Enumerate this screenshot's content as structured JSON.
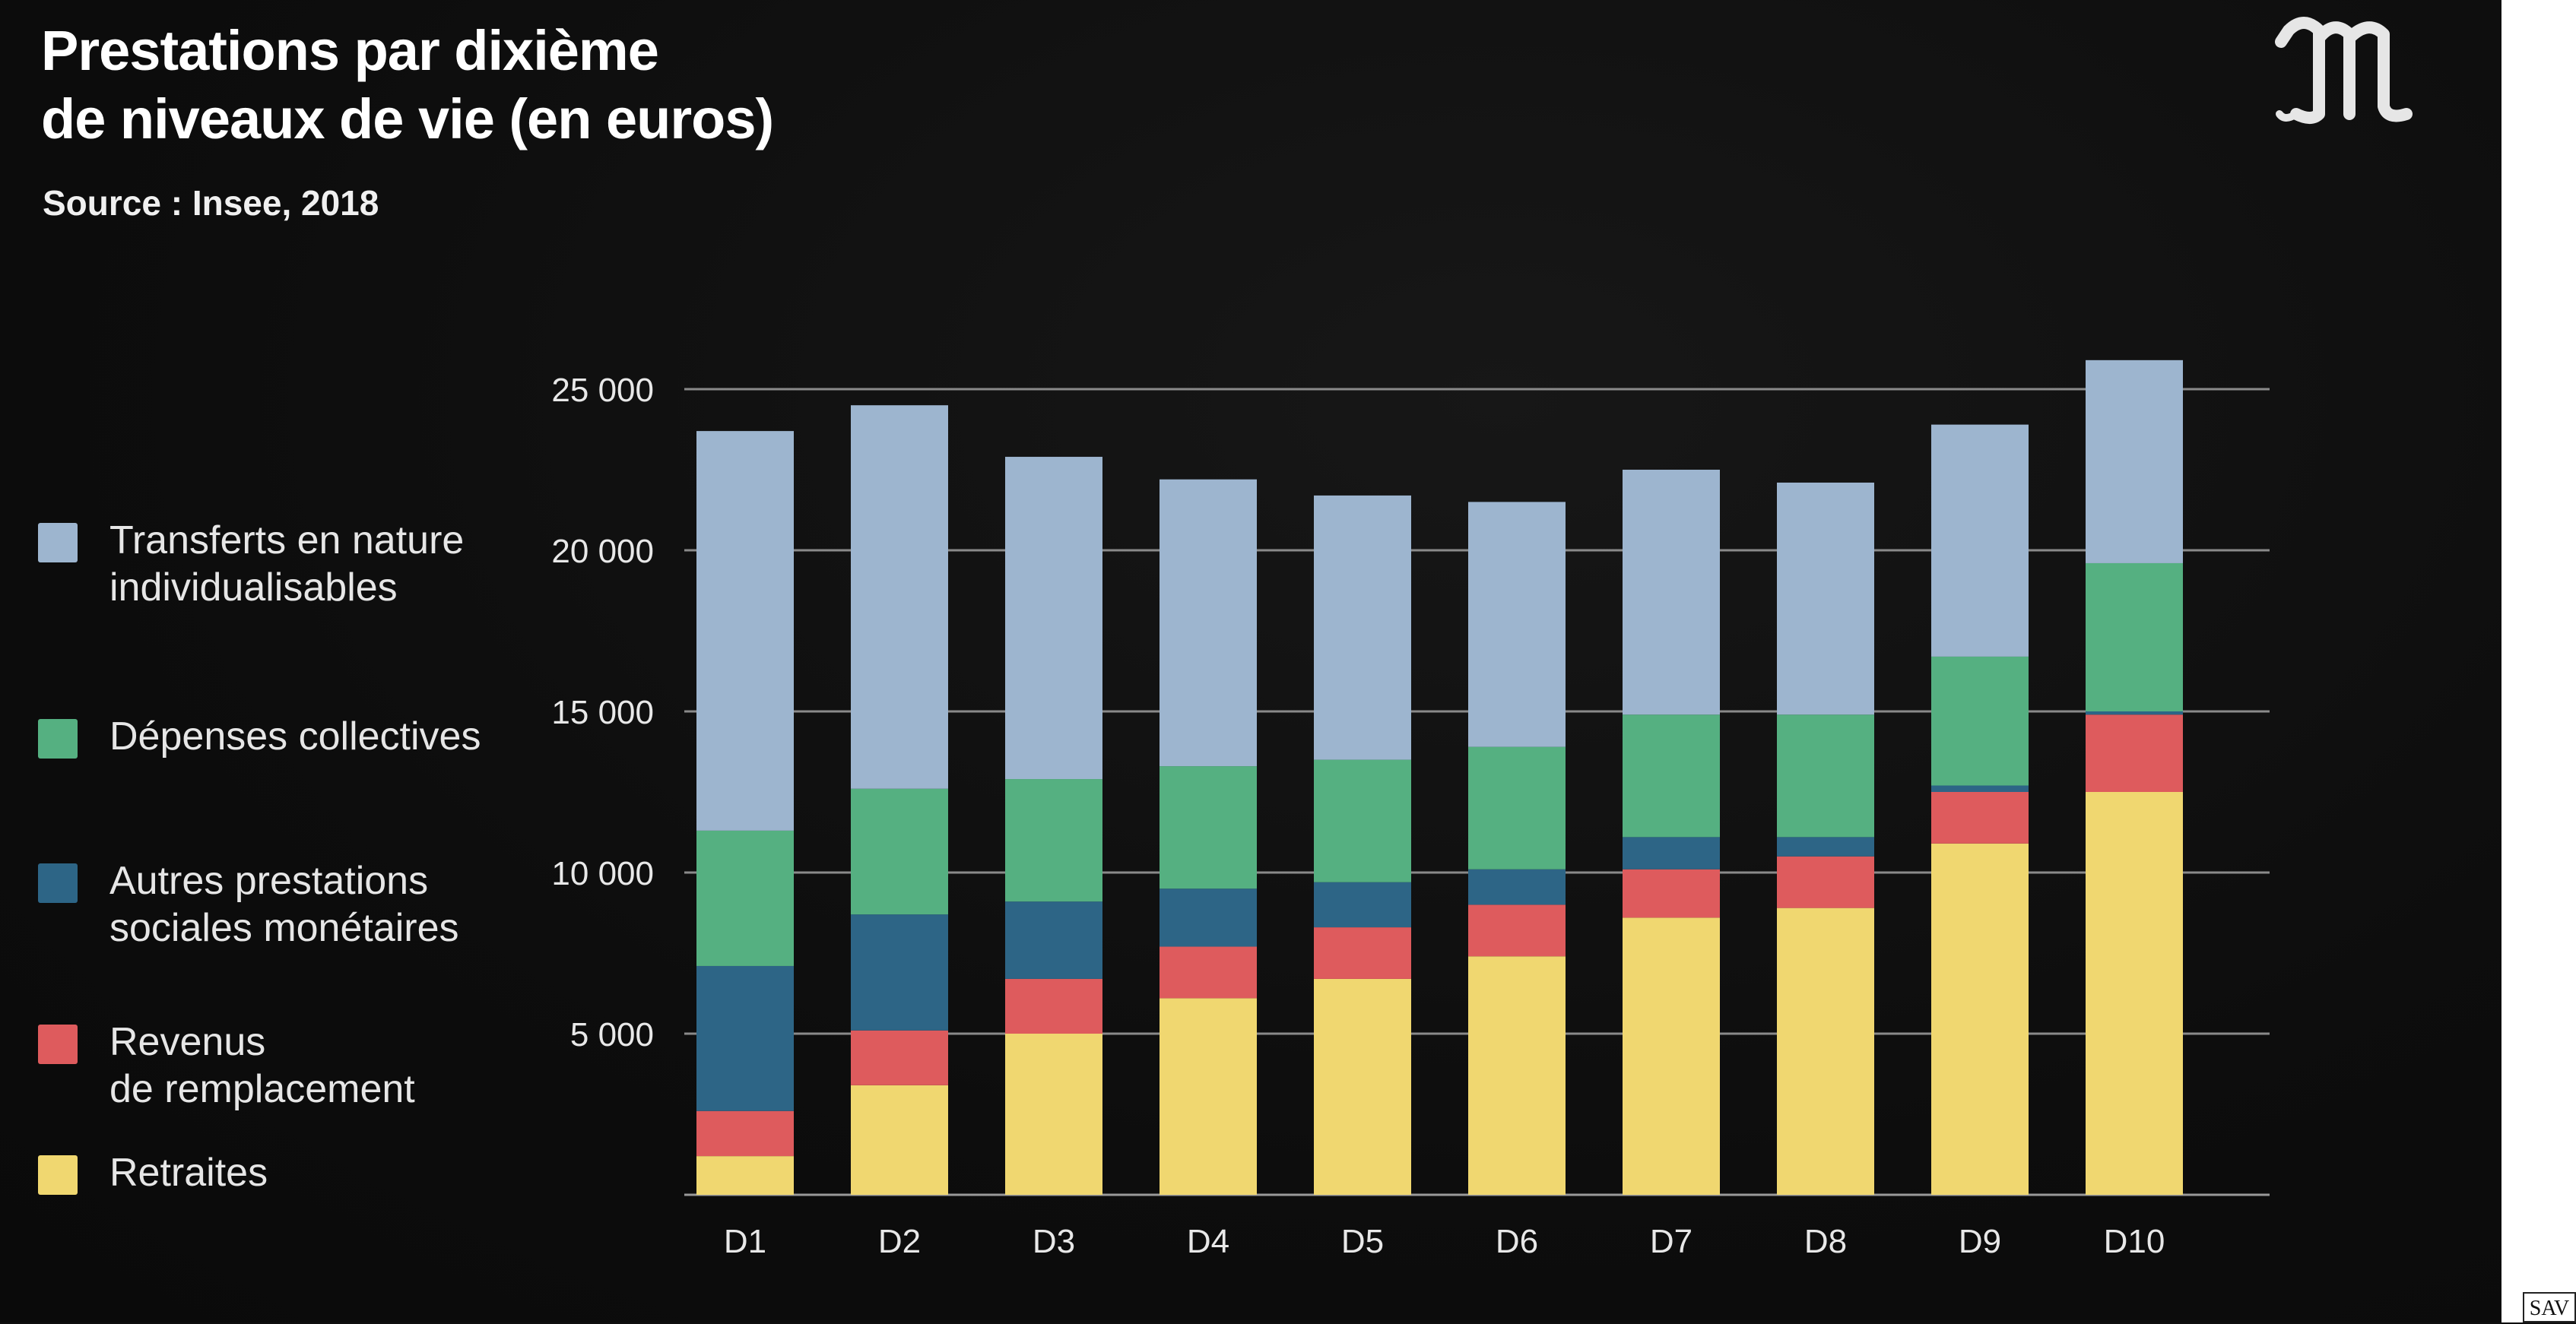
{
  "title": "Prestations par dixième de niveaux de vie (en euros)",
  "source": "Source : Insee, 2018",
  "logo_text": "M",
  "badge_text": "SAV",
  "legend": [
    {
      "label": "Transferts en nature individualisables",
      "color": "#9db5cf"
    },
    {
      "label": "Dépenses collectives",
      "color": "#55b081"
    },
    {
      "label": "Autres prestations sociales monétaires",
      "color": "#2d6586"
    },
    {
      "label": "Revenus de remplacement",
      "color": "#de5b5d"
    },
    {
      "label": "Retraites",
      "color": "#f0d770"
    }
  ],
  "chart_data": {
    "type": "bar",
    "stacked": true,
    "title": "Prestations par dixième de niveaux de vie (en euros)",
    "subtitle": "Source : Insee, 2018",
    "categories": [
      "D1",
      "D2",
      "D3",
      "D4",
      "D5",
      "D6",
      "D7",
      "D8",
      "D9",
      "D10"
    ],
    "ylim": [
      0,
      25000
    ],
    "yticks": [
      5000,
      10000,
      15000,
      20000,
      25000
    ],
    "ytick_labels": [
      "5 000",
      "10 000",
      "15 000",
      "20 000",
      "25 000"
    ],
    "grid": true,
    "legend_position": "left",
    "series": [
      {
        "name": "Retraites",
        "color": "#f0d770",
        "values": [
          1200,
          3400,
          5000,
          6100,
          6700,
          7400,
          8600,
          8900,
          10900,
          12500
        ]
      },
      {
        "name": "Revenus de remplacement",
        "color": "#de5b5d",
        "values": [
          1400,
          1700,
          1700,
          1600,
          1600,
          1600,
          1500,
          1600,
          1600,
          2400
        ]
      },
      {
        "name": "Autres prestations sociales monétaires",
        "color": "#2d6586",
        "values": [
          4500,
          3600,
          2400,
          1800,
          1400,
          1100,
          1000,
          600,
          200,
          100
        ]
      },
      {
        "name": "Dépenses collectives",
        "color": "#55b081",
        "values": [
          4200,
          3900,
          3800,
          3800,
          3800,
          3800,
          3800,
          3800,
          4000,
          4600
        ]
      },
      {
        "name": "Transferts en nature individualisables",
        "color": "#9db5cf",
        "values": [
          12400,
          11900,
          10000,
          8900,
          8200,
          7600,
          7600,
          7200,
          7200,
          6300
        ]
      }
    ]
  }
}
